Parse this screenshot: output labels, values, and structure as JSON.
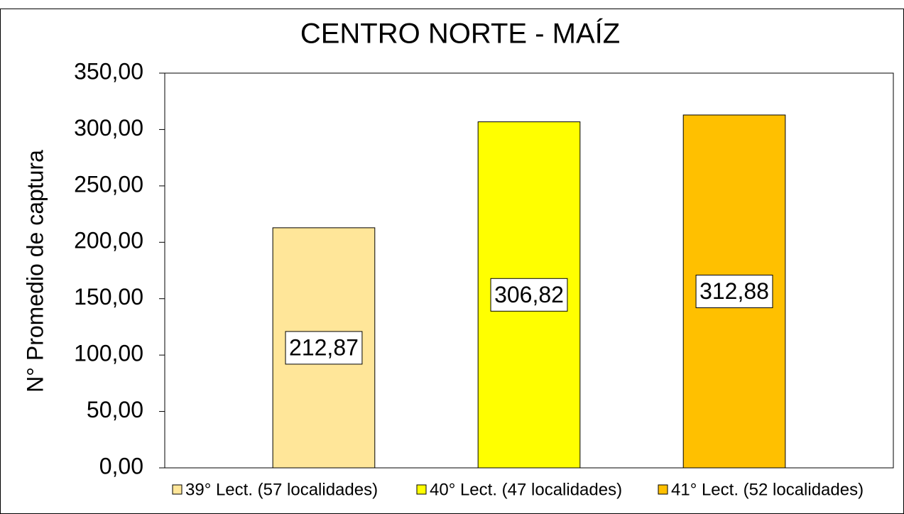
{
  "chart_data": {
    "type": "bar",
    "title": "CENTRO NORTE - MAÍZ",
    "y_label": "N° Promedio de captura",
    "categories": [
      null
    ],
    "series": [
      {
        "name": "39° Lect. (57 localidades)",
        "color": "#FFE699",
        "values": [
          212.87
        ],
        "value_labels": [
          "212,87"
        ]
      },
      {
        "name": "40° Lect. (47 localidades)",
        "color": "#FFFF00",
        "values": [
          306.82
        ],
        "value_labels": [
          "306,82"
        ]
      },
      {
        "name": "41° Lect. (52 localidades)",
        "color": "#FFC000",
        "values": [
          312.88
        ],
        "value_labels": [
          "312,88"
        ]
      }
    ],
    "ylim": [
      0,
      350
    ],
    "yticks": [
      {
        "value": 0,
        "label": "0,00"
      },
      {
        "value": 50,
        "label": "50,00"
      },
      {
        "value": 100,
        "label": "100,00"
      },
      {
        "value": 150,
        "label": "150,00"
      },
      {
        "value": 200,
        "label": "200,00"
      },
      {
        "value": 250,
        "label": "250,00"
      },
      {
        "value": 300,
        "label": "300,00"
      },
      {
        "value": 350,
        "label": "350,00"
      }
    ],
    "grid": false,
    "legend": "bottom"
  }
}
